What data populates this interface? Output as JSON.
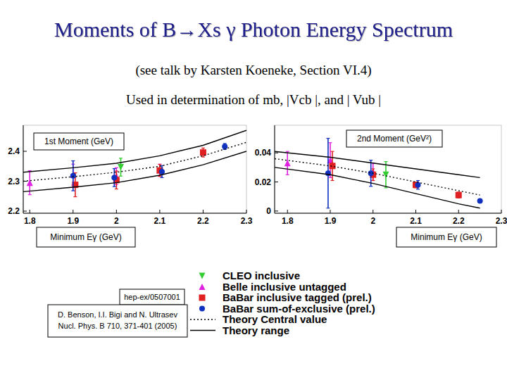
{
  "slide": {
    "title": "Moments of B→Xs γ Photon Energy Spectrum",
    "subtitle": "(see talk by Karsten Koeneke, Section VI.4)",
    "note": "Used in determination of mb, |Vcb |, and | Vub |",
    "reference": "hep-ex/0507001",
    "citation": [
      "D. Benson, I.I. Bigi and N. Ultrasev",
      "Nucl. Phys. B 710, 371-401 (2005)"
    ]
  },
  "chart_data": [
    {
      "type": "scatter",
      "y_label": "1st Moment (GeV)",
      "x_label": "Minimum Eγ (GeV)",
      "xlim": [
        1.785,
        2.3
      ],
      "xticks": [
        1.8,
        1.9,
        2,
        2.1,
        2.2,
        2.3
      ],
      "ylim": [
        2.193,
        2.487
      ],
      "yticks": [
        2.2,
        2.3,
        2.4
      ],
      "series": [
        {
          "name": "CLEO inclusive",
          "type": "scatter",
          "marker": "triangle-down",
          "color": "#33cc33",
          "x": [
            2.01
          ],
          "values": [
            2.347
          ],
          "errors": [
            0.03
          ]
        },
        {
          "name": "Belle inclusive untagged",
          "type": "scatter",
          "marker": "triangle-up",
          "color": "#e020e0",
          "x": [
            1.8,
            1.9,
            2.0,
            2.1
          ],
          "values": [
            2.295,
            2.322,
            2.317,
            2.337
          ],
          "errors": [
            0.04,
            0.035,
            0.028,
            0.02
          ]
        },
        {
          "name": "BaBar inclusive tagged (prel.)",
          "type": "scatter",
          "marker": "square",
          "color": "#e02020",
          "x": [
            1.905,
            2.0,
            2.1,
            2.2
          ],
          "values": [
            2.288,
            2.304,
            2.336,
            2.396
          ],
          "errors": [
            0.04,
            0.03,
            0.02,
            0.015
          ]
        },
        {
          "name": "BaBar sum-of-exclusive (prel.)",
          "type": "scatter",
          "marker": "circle",
          "color": "#1030c0",
          "x": [
            1.9,
            1.995,
            2.105,
            2.25
          ],
          "values": [
            2.318,
            2.312,
            2.332,
            2.416
          ],
          "errors": [
            0.05,
            0.03,
            0.02,
            0.01
          ]
        },
        {
          "name": "Theory Central value",
          "type": "line",
          "line_style": "dotted",
          "color": "#000000",
          "x": [
            1.785,
            1.9,
            2.0,
            2.1,
            2.2,
            2.3
          ],
          "values": [
            2.3,
            2.315,
            2.33,
            2.35,
            2.385,
            2.43
          ]
        },
        {
          "name": "Theory range",
          "type": "band",
          "line_style": "solid",
          "color": "#000000",
          "x": [
            1.785,
            1.9,
            2.0,
            2.1,
            2.2,
            2.3
          ],
          "low": [
            2.265,
            2.28,
            2.295,
            2.32,
            2.355,
            2.4
          ],
          "high": [
            2.33,
            2.345,
            2.36,
            2.385,
            2.42,
            2.47
          ]
        }
      ]
    },
    {
      "type": "scatter",
      "y_label": "2nd Moment (GeV²)",
      "x_label": "Minimum Eγ (GeV)",
      "xlim": [
        1.77,
        2.3
      ],
      "xticks": [
        1.8,
        1.9,
        2,
        2.1,
        2.2,
        2.3
      ],
      "ylim": [
        -0.0015,
        0.059
      ],
      "yticks": [
        0,
        0.02,
        0.04
      ],
      "series": [
        {
          "type": "scatter",
          "marker": "triangle-down",
          "color": "#33cc33",
          "x": [
            2.03
          ],
          "values": [
            0.025
          ],
          "errors": [
            0.009
          ]
        },
        {
          "type": "scatter",
          "marker": "triangle-up",
          "color": "#e020e0",
          "x": [
            1.8,
            1.9,
            2.0
          ],
          "values": [
            0.033,
            0.035,
            0.027
          ],
          "errors": [
            0.008,
            0.012,
            0.006
          ]
        },
        {
          "type": "scatter",
          "marker": "square",
          "color": "#e02020",
          "x": [
            1.905,
            2.0,
            2.1,
            2.2
          ],
          "values": [
            0.031,
            0.025,
            0.018,
            0.011
          ],
          "errors": [
            0.01,
            0.004,
            0.002,
            0.002
          ]
        },
        {
          "type": "scatter",
          "marker": "circle",
          "color": "#1030c0",
          "x": [
            1.895,
            1.995,
            2.105,
            2.25
          ],
          "values": [
            0.026,
            0.026,
            0.018,
            0.007
          ],
          "errors": [
            0.024,
            0.009,
            0.003,
            0.001
          ]
        },
        {
          "type": "line",
          "line_style": "dotted",
          "color": "#000000",
          "x": [
            1.77,
            1.9,
            2.0,
            2.1,
            2.2,
            2.25
          ],
          "values": [
            0.036,
            0.031,
            0.026,
            0.02,
            0.014,
            0.011
          ]
        },
        {
          "type": "band",
          "line_style": "solid",
          "color": "#000000",
          "x": [
            1.77,
            1.9,
            2.0,
            2.1,
            2.2,
            2.25
          ],
          "low": [
            0.03,
            0.025,
            0.019,
            0.012,
            0.005,
            0.002
          ],
          "high": [
            0.041,
            0.037,
            0.033,
            0.029,
            0.025,
            0.023
          ]
        }
      ]
    }
  ]
}
